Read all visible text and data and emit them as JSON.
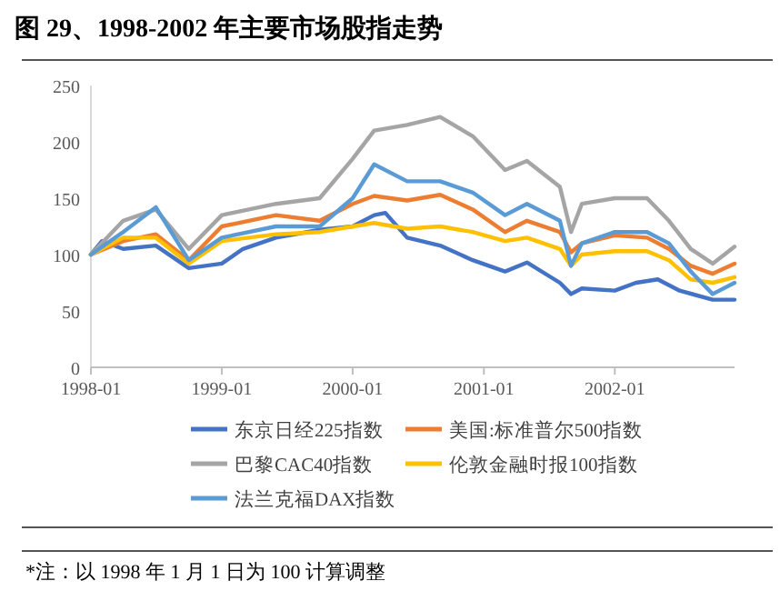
{
  "chart_data": {
    "type": "line",
    "title": "图 29、1998-2002 年主要市场股指走势",
    "xlim": [
      "1998-01",
      "2002-12"
    ],
    "xticks": [
      "1998-01",
      "1999-01",
      "2000-01",
      "2001-01",
      "2002-01"
    ],
    "ylim": [
      0,
      250
    ],
    "yticks": [
      0,
      50,
      100,
      150,
      200,
      250
    ],
    "grid": false,
    "legend": "bottom",
    "marker": "none",
    "line_style": "solid",
    "series": [
      {
        "name": "东京日经225指数",
        "color": "#4472c4",
        "x": [
          "1998-01",
          "1998-02",
          "1998-04",
          "1998-07",
          "1998-10",
          "1999-01",
          "1999-03",
          "1999-06",
          "1999-10",
          "2000-01",
          "2000-03",
          "2000-04",
          "2000-06",
          "2000-09",
          "2000-12",
          "2001-03",
          "2001-05",
          "2001-08",
          "2001-09",
          "2001-10",
          "2002-01",
          "2002-03",
          "2002-05",
          "2002-07",
          "2002-10",
          "2002-12"
        ],
        "values": [
          100,
          112,
          105,
          108,
          88,
          92,
          105,
          115,
          122,
          125,
          135,
          137,
          115,
          108,
          95,
          85,
          93,
          75,
          65,
          70,
          68,
          75,
          78,
          68,
          60,
          60
        ]
      },
      {
        "name": "美国:标准普尔500指数",
        "color": "#ed7d31",
        "x": [
          "1998-01",
          "1998-04",
          "1998-07",
          "1998-10",
          "1999-01",
          "1999-06",
          "1999-10",
          "2000-01",
          "2000-03",
          "2000-06",
          "2000-09",
          "2000-12",
          "2001-03",
          "2001-05",
          "2001-08",
          "2001-09",
          "2001-10",
          "2002-01",
          "2002-04",
          "2002-06",
          "2002-08",
          "2002-10",
          "2002-12"
        ],
        "values": [
          100,
          112,
          118,
          95,
          125,
          135,
          130,
          145,
          152,
          148,
          153,
          140,
          120,
          130,
          120,
          102,
          110,
          117,
          115,
          105,
          90,
          83,
          92
        ]
      },
      {
        "name": "巴黎CAC40指数",
        "color": "#a5a5a5",
        "x": [
          "1998-01",
          "1998-04",
          "1998-07",
          "1998-10",
          "1999-01",
          "1999-06",
          "1999-10",
          "2000-01",
          "2000-03",
          "2000-06",
          "2000-09",
          "2000-12",
          "2001-03",
          "2001-05",
          "2001-08",
          "2001-09",
          "2001-10",
          "2002-01",
          "2002-04",
          "2002-06",
          "2002-08",
          "2002-10",
          "2002-12"
        ],
        "values": [
          100,
          130,
          140,
          105,
          135,
          145,
          150,
          185,
          210,
          215,
          222,
          205,
          175,
          183,
          160,
          120,
          145,
          150,
          150,
          130,
          105,
          92,
          107
        ]
      },
      {
        "name": "伦敦金融时报100指数",
        "color": "#ffc000",
        "x": [
          "1998-01",
          "1998-04",
          "1998-07",
          "1998-10",
          "1999-01",
          "1999-06",
          "1999-10",
          "2000-01",
          "2000-03",
          "2000-06",
          "2000-09",
          "2000-12",
          "2001-03",
          "2001-05",
          "2001-08",
          "2001-09",
          "2001-10",
          "2002-01",
          "2002-04",
          "2002-06",
          "2002-08",
          "2002-10",
          "2002-12"
        ],
        "values": [
          100,
          115,
          115,
          92,
          112,
          118,
          120,
          125,
          128,
          123,
          125,
          120,
          112,
          115,
          105,
          90,
          100,
          103,
          103,
          95,
          78,
          75,
          80
        ]
      },
      {
        "name": "法兰克福DAX指数",
        "color": "#5b9bd5",
        "x": [
          "1998-01",
          "1998-04",
          "1998-07",
          "1998-10",
          "1999-01",
          "1999-06",
          "1999-10",
          "2000-01",
          "2000-03",
          "2000-06",
          "2000-09",
          "2000-12",
          "2001-03",
          "2001-05",
          "2001-08",
          "2001-09",
          "2001-10",
          "2002-01",
          "2002-04",
          "2002-06",
          "2002-08",
          "2002-10",
          "2002-12"
        ],
        "values": [
          100,
          120,
          142,
          95,
          115,
          125,
          125,
          150,
          180,
          165,
          165,
          155,
          135,
          145,
          130,
          90,
          110,
          120,
          120,
          110,
          85,
          65,
          75
        ]
      }
    ],
    "annotations": [
      "*注：以 1998 年 1 月 1 日为 100 计算调整"
    ]
  }
}
